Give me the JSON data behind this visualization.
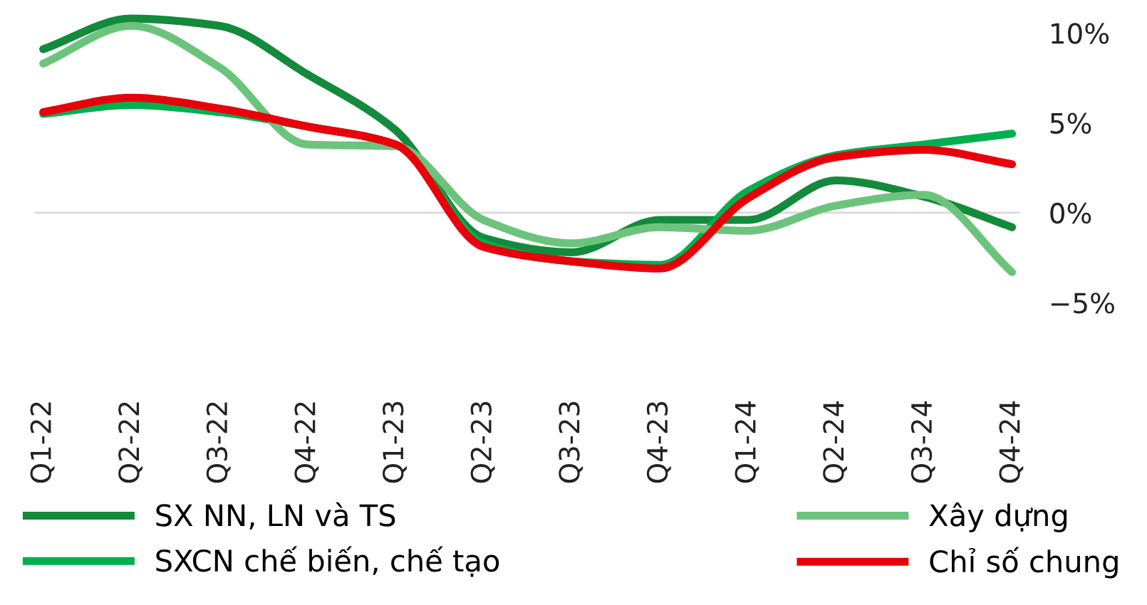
{
  "chart_data": {
    "type": "line",
    "categories": [
      "Q1-22",
      "Q2-22",
      "Q3-22",
      "Q4-22",
      "Q1-23",
      "Q2-23",
      "Q3-23",
      "Q4-23",
      "Q1-24",
      "Q2-24",
      "Q3-24",
      "Q4-24"
    ],
    "series": [
      {
        "name": "SX NN, LN và TS",
        "color": "#138a3c",
        "values": [
          9.1,
          10.8,
          10.4,
          7.7,
          4.6,
          -1.4,
          -2.2,
          -0.4,
          -0.4,
          1.8,
          0.9,
          -0.8
        ]
      },
      {
        "name": "SXCN chế biến, chế tạo",
        "color": "#00b04f",
        "values": [
          5.5,
          6.0,
          5.6,
          4.8,
          3.8,
          -1.7,
          -2.7,
          -2.9,
          1.2,
          3.2,
          3.8,
          4.4
        ]
      },
      {
        "name": "Xây dựng",
        "color": "#6cc47c",
        "values": [
          8.3,
          10.4,
          8.1,
          3.8,
          3.7,
          -0.4,
          -1.7,
          -0.8,
          -1.0,
          0.4,
          1.0,
          -3.3
        ]
      },
      {
        "name": "Chỉ số chung",
        "color": "#e8000b",
        "values": [
          5.6,
          6.4,
          5.8,
          4.8,
          3.8,
          -1.9,
          -2.7,
          -3.1,
          0.8,
          3.1,
          3.5,
          2.7
        ]
      }
    ],
    "ylim": [
      -6,
      11.5
    ],
    "yticks": [
      {
        "value": 10,
        "label": "10%"
      },
      {
        "value": 5,
        "label": "5%"
      },
      {
        "value": 0,
        "label": "0%"
      },
      {
        "value": -5,
        "label": "−5%"
      }
    ],
    "ref_lines": [
      {
        "axis": "y",
        "value": 0,
        "color": "#d9d9d9"
      }
    ],
    "grid": false,
    "legend": "bottom",
    "marker": "none",
    "line_style": "solid"
  }
}
